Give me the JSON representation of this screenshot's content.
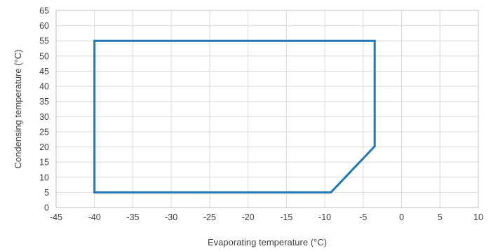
{
  "chart_data": {
    "type": "line",
    "title": "",
    "xlabel": "Evaporating temperature (°C)",
    "ylabel": "Condensing temperature (°C)",
    "xlim": [
      -45,
      10
    ],
    "ylim": [
      0,
      65
    ],
    "x_ticks": [
      "-45",
      "-40",
      "-35",
      "-30",
      "-25",
      "-20",
      "-15",
      "-10",
      "-5",
      "0",
      "5",
      "10"
    ],
    "y_ticks": [
      "0",
      "5",
      "10",
      "15",
      "20",
      "25",
      "30",
      "35",
      "40",
      "45",
      "50",
      "55",
      "60",
      "65"
    ],
    "grid": true,
    "series": [
      {
        "color": "#1f77b4",
        "x": [
          -40,
          -3.5,
          -3.5,
          -9.2,
          -40,
          -40
        ],
        "y": [
          55,
          55,
          20.2,
          5,
          5,
          55
        ]
      }
    ]
  }
}
